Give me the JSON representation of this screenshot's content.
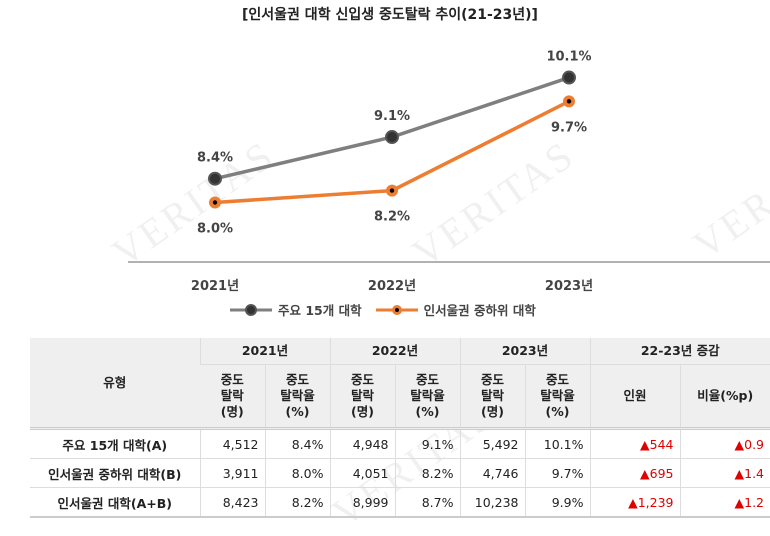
{
  "chart_data": {
    "type": "line",
    "title": "[인서울권 대학 신입생 중도탈락 추이(21-23년)]",
    "categories": [
      "2021년",
      "2022년",
      "2023년"
    ],
    "series": [
      {
        "name": "주요 15개 대학",
        "values": [
          8.4,
          9.1,
          10.1
        ],
        "labels": [
          "8.4%",
          "9.1%",
          "10.1%"
        ],
        "color": "#7f7f7f"
      },
      {
        "name": "인서울권 중하위 대학",
        "values": [
          8.0,
          8.2,
          9.7
        ],
        "labels": [
          "8.0%",
          "8.2%",
          "9.7%"
        ],
        "color": "#ed7d31"
      }
    ],
    "ylim": [
      7,
      11
    ],
    "grid": false,
    "legend": "bottom"
  },
  "watermark": "VERITAS",
  "table": {
    "type_header": "유형",
    "years": [
      "2021년",
      "2022년",
      "2023년",
      "22-23년 증감"
    ],
    "sub_headers": [
      "중도\n탈락\n(명)",
      "중도\n탈락율\n(%)",
      "중도\n탈락\n(명)",
      "중도\n탈락율\n(%)",
      "중도\n탈락\n(명)",
      "중도\n탈락율\n(%)",
      "인원",
      "비율(%p)"
    ],
    "rows": [
      [
        "주요 15개 대학(A)",
        "4,512",
        "8.4%",
        "4,948",
        "9.1%",
        "5,492",
        "10.1%",
        "▲544",
        "▲0.9"
      ],
      [
        "인서울권 중하위 대학(B)",
        "3,911",
        "8.0%",
        "4,051",
        "8.2%",
        "4,746",
        "9.7%",
        "▲695",
        "▲1.4"
      ],
      [
        "인서울권 대학(A+B)",
        "8,423",
        "8.2%",
        "8,999",
        "8.7%",
        "10,238",
        "9.9%",
        "▲1,239",
        "▲1.2"
      ]
    ],
    "increase_color": "#e00000"
  }
}
